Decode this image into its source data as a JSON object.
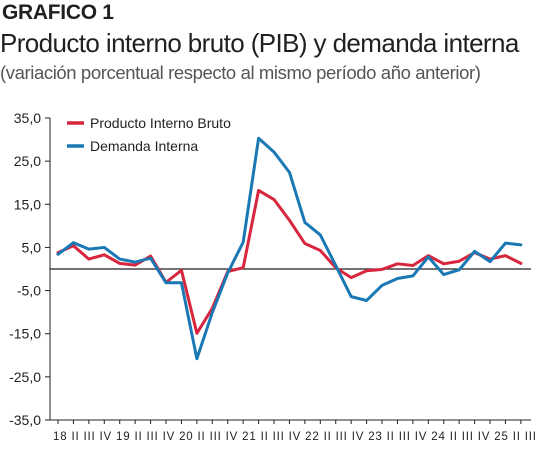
{
  "header": {
    "label": "GRAFICO 1",
    "title": "Producto interno bruto (PIB) y demanda interna",
    "subtitle": "(variación porcentual respecto al mismo período año anterior)"
  },
  "chart_data": {
    "type": "line",
    "ylim": [
      -35,
      35
    ],
    "yticks": [
      35,
      25,
      15,
      5,
      -5,
      -15,
      -25,
      -35
    ],
    "ytick_labels": [
      "35,0",
      "25,0",
      "15,0",
      "5,0",
      "-5,0",
      "-15,0",
      "-25,0",
      "-35,0"
    ],
    "grid": false,
    "legend_position": "top-left",
    "x_tick_labels": [
      "18 II",
      "III",
      "IV",
      "19 II",
      "III",
      "IV",
      "20 II",
      "III",
      "IV",
      "21 II",
      "III",
      "IV",
      "22 II",
      "III",
      "IV",
      "23 II",
      "III",
      "IV",
      "24 II",
      "III",
      "IV",
      "25 II",
      "III"
    ],
    "series": [
      {
        "name": "Producto Interno Bruto",
        "color": "#d7263d",
        "values": [
          3.8,
          5.4,
          2.3,
          3.3,
          1.3,
          0.9,
          3.0,
          -3.1,
          -0.3,
          -14.9,
          -9.1,
          -0.6,
          0.3,
          18.2,
          16.1,
          11.3,
          5.9,
          4.3,
          0.3,
          -2.0,
          -0.4,
          -0.1,
          1.2,
          0.8,
          3.1,
          1.2,
          1.8,
          3.8,
          2.3,
          3.1,
          1.3
        ]
      },
      {
        "name": "Demanda Interna",
        "color": "#1a78b4",
        "values": [
          3.4,
          6.1,
          4.6,
          5.0,
          2.3,
          1.6,
          2.5,
          -3.2,
          -3.2,
          -20.8,
          -10.1,
          -0.9,
          6.2,
          30.3,
          27.1,
          22.4,
          10.8,
          7.9,
          0.8,
          -6.4,
          -7.3,
          -3.8,
          -2.2,
          -1.6,
          2.8,
          -1.3,
          -0.2,
          4.1,
          1.7,
          6.0,
          5.6
        ]
      }
    ]
  }
}
